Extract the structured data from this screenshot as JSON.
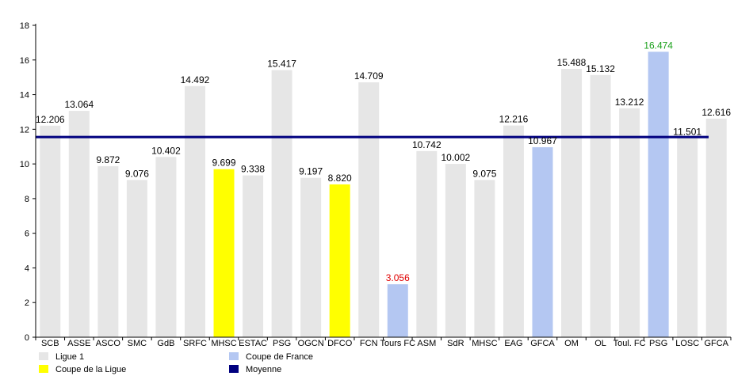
{
  "chart_data": {
    "type": "bar",
    "ylim": [
      0,
      18
    ],
    "ytick_step": 2,
    "yticks": [
      "0",
      "2",
      "4",
      "6",
      "8",
      "10",
      "12",
      "14",
      "16",
      "18"
    ],
    "grid": false,
    "legend_position": "bottom-left",
    "categories": [
      "SCB",
      "ASSE",
      "ASCO",
      "SMC",
      "GdB",
      "SRFC",
      "MHSC",
      "ESTAC",
      "PSG",
      "OGCN",
      "DFCO",
      "FCN",
      "Tours FC",
      "ASM",
      "SdR",
      "MHSC",
      "EAG",
      "GFCA",
      "OM",
      "OL",
      "Toul. FC",
      "PSG",
      "LOSC",
      "GFCA"
    ],
    "values": [
      12.206,
      13.064,
      9.872,
      9.076,
      10.402,
      14.492,
      9.699,
      9.338,
      15.417,
      9.197,
      8.82,
      14.709,
      3.056,
      10.742,
      10.002,
      9.075,
      12.216,
      10.967,
      15.488,
      15.132,
      13.212,
      16.474,
      11.501,
      12.616
    ],
    "value_labels": [
      "12.206",
      "13.064",
      "9.872",
      "9.076",
      "10.402",
      "14.492",
      "9.699",
      "9.338",
      "15.417",
      "9.197",
      "8.820",
      "14.709",
      "3.056",
      "10.742",
      "10.002",
      "9.075",
      "12.216",
      "10.967",
      "15.488",
      "15.132",
      "13.212",
      "16.474",
      "11.501",
      "12.616"
    ],
    "competition": [
      "ligue1",
      "ligue1",
      "ligue1",
      "ligue1",
      "ligue1",
      "ligue1",
      "ligue",
      "ligue1",
      "ligue1",
      "ligue1",
      "ligue",
      "ligue1",
      "france",
      "ligue1",
      "ligue1",
      "ligue1",
      "ligue1",
      "france",
      "ligue1",
      "ligue1",
      "ligue1",
      "france",
      "ligue1",
      "ligue1"
    ],
    "label_highlight": [
      "",
      "",
      "",
      "",
      "",
      "",
      "",
      "",
      "",
      "",
      "",
      "",
      "min",
      "",
      "",
      "",
      "",
      "",
      "",
      "",
      "",
      "max",
      "",
      ""
    ],
    "average": 11.55,
    "legend": [
      {
        "key": "ligue1",
        "label": "Ligue 1"
      },
      {
        "key": "france",
        "label": "Coupe de France"
      },
      {
        "key": "ligue",
        "label": "Coupe de la Ligue"
      },
      {
        "key": "average",
        "label": "Moyenne"
      }
    ],
    "colors": {
      "ligue1": "#e6e6e6",
      "france": "#b4c7f2",
      "ligue": "#ffff00",
      "average": "#00007f",
      "min_label": "#e00000",
      "max_label": "#1aa01a",
      "axis": "#000000"
    }
  }
}
